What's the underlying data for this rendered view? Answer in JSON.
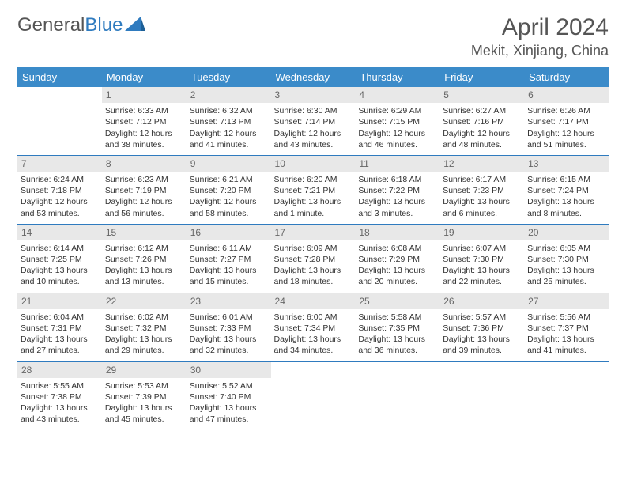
{
  "logo": {
    "part1": "General",
    "part2": "Blue"
  },
  "title": "April 2024",
  "location": "Mekit, Xinjiang, China",
  "colors": {
    "header_bg": "#3b8bc9",
    "header_fg": "#ffffff",
    "daynum_bg": "#e8e8e8",
    "daynum_fg": "#666666",
    "rule": "#2f7bbf",
    "text": "#333333"
  },
  "weekdays": [
    "Sunday",
    "Monday",
    "Tuesday",
    "Wednesday",
    "Thursday",
    "Friday",
    "Saturday"
  ],
  "weeks": [
    [
      {
        "day": "",
        "sunrise": "",
        "sunset": "",
        "daylight": ""
      },
      {
        "day": "1",
        "sunrise": "Sunrise: 6:33 AM",
        "sunset": "Sunset: 7:12 PM",
        "daylight": "Daylight: 12 hours and 38 minutes."
      },
      {
        "day": "2",
        "sunrise": "Sunrise: 6:32 AM",
        "sunset": "Sunset: 7:13 PM",
        "daylight": "Daylight: 12 hours and 41 minutes."
      },
      {
        "day": "3",
        "sunrise": "Sunrise: 6:30 AM",
        "sunset": "Sunset: 7:14 PM",
        "daylight": "Daylight: 12 hours and 43 minutes."
      },
      {
        "day": "4",
        "sunrise": "Sunrise: 6:29 AM",
        "sunset": "Sunset: 7:15 PM",
        "daylight": "Daylight: 12 hours and 46 minutes."
      },
      {
        "day": "5",
        "sunrise": "Sunrise: 6:27 AM",
        "sunset": "Sunset: 7:16 PM",
        "daylight": "Daylight: 12 hours and 48 minutes."
      },
      {
        "day": "6",
        "sunrise": "Sunrise: 6:26 AM",
        "sunset": "Sunset: 7:17 PM",
        "daylight": "Daylight: 12 hours and 51 minutes."
      }
    ],
    [
      {
        "day": "7",
        "sunrise": "Sunrise: 6:24 AM",
        "sunset": "Sunset: 7:18 PM",
        "daylight": "Daylight: 12 hours and 53 minutes."
      },
      {
        "day": "8",
        "sunrise": "Sunrise: 6:23 AM",
        "sunset": "Sunset: 7:19 PM",
        "daylight": "Daylight: 12 hours and 56 minutes."
      },
      {
        "day": "9",
        "sunrise": "Sunrise: 6:21 AM",
        "sunset": "Sunset: 7:20 PM",
        "daylight": "Daylight: 12 hours and 58 minutes."
      },
      {
        "day": "10",
        "sunrise": "Sunrise: 6:20 AM",
        "sunset": "Sunset: 7:21 PM",
        "daylight": "Daylight: 13 hours and 1 minute."
      },
      {
        "day": "11",
        "sunrise": "Sunrise: 6:18 AM",
        "sunset": "Sunset: 7:22 PM",
        "daylight": "Daylight: 13 hours and 3 minutes."
      },
      {
        "day": "12",
        "sunrise": "Sunrise: 6:17 AM",
        "sunset": "Sunset: 7:23 PM",
        "daylight": "Daylight: 13 hours and 6 minutes."
      },
      {
        "day": "13",
        "sunrise": "Sunrise: 6:15 AM",
        "sunset": "Sunset: 7:24 PM",
        "daylight": "Daylight: 13 hours and 8 minutes."
      }
    ],
    [
      {
        "day": "14",
        "sunrise": "Sunrise: 6:14 AM",
        "sunset": "Sunset: 7:25 PM",
        "daylight": "Daylight: 13 hours and 10 minutes."
      },
      {
        "day": "15",
        "sunrise": "Sunrise: 6:12 AM",
        "sunset": "Sunset: 7:26 PM",
        "daylight": "Daylight: 13 hours and 13 minutes."
      },
      {
        "day": "16",
        "sunrise": "Sunrise: 6:11 AM",
        "sunset": "Sunset: 7:27 PM",
        "daylight": "Daylight: 13 hours and 15 minutes."
      },
      {
        "day": "17",
        "sunrise": "Sunrise: 6:09 AM",
        "sunset": "Sunset: 7:28 PM",
        "daylight": "Daylight: 13 hours and 18 minutes."
      },
      {
        "day": "18",
        "sunrise": "Sunrise: 6:08 AM",
        "sunset": "Sunset: 7:29 PM",
        "daylight": "Daylight: 13 hours and 20 minutes."
      },
      {
        "day": "19",
        "sunrise": "Sunrise: 6:07 AM",
        "sunset": "Sunset: 7:30 PM",
        "daylight": "Daylight: 13 hours and 22 minutes."
      },
      {
        "day": "20",
        "sunrise": "Sunrise: 6:05 AM",
        "sunset": "Sunset: 7:30 PM",
        "daylight": "Daylight: 13 hours and 25 minutes."
      }
    ],
    [
      {
        "day": "21",
        "sunrise": "Sunrise: 6:04 AM",
        "sunset": "Sunset: 7:31 PM",
        "daylight": "Daylight: 13 hours and 27 minutes."
      },
      {
        "day": "22",
        "sunrise": "Sunrise: 6:02 AM",
        "sunset": "Sunset: 7:32 PM",
        "daylight": "Daylight: 13 hours and 29 minutes."
      },
      {
        "day": "23",
        "sunrise": "Sunrise: 6:01 AM",
        "sunset": "Sunset: 7:33 PM",
        "daylight": "Daylight: 13 hours and 32 minutes."
      },
      {
        "day": "24",
        "sunrise": "Sunrise: 6:00 AM",
        "sunset": "Sunset: 7:34 PM",
        "daylight": "Daylight: 13 hours and 34 minutes."
      },
      {
        "day": "25",
        "sunrise": "Sunrise: 5:58 AM",
        "sunset": "Sunset: 7:35 PM",
        "daylight": "Daylight: 13 hours and 36 minutes."
      },
      {
        "day": "26",
        "sunrise": "Sunrise: 5:57 AM",
        "sunset": "Sunset: 7:36 PM",
        "daylight": "Daylight: 13 hours and 39 minutes."
      },
      {
        "day": "27",
        "sunrise": "Sunrise: 5:56 AM",
        "sunset": "Sunset: 7:37 PM",
        "daylight": "Daylight: 13 hours and 41 minutes."
      }
    ],
    [
      {
        "day": "28",
        "sunrise": "Sunrise: 5:55 AM",
        "sunset": "Sunset: 7:38 PM",
        "daylight": "Daylight: 13 hours and 43 minutes."
      },
      {
        "day": "29",
        "sunrise": "Sunrise: 5:53 AM",
        "sunset": "Sunset: 7:39 PM",
        "daylight": "Daylight: 13 hours and 45 minutes."
      },
      {
        "day": "30",
        "sunrise": "Sunrise: 5:52 AM",
        "sunset": "Sunset: 7:40 PM",
        "daylight": "Daylight: 13 hours and 47 minutes."
      },
      {
        "day": "",
        "sunrise": "",
        "sunset": "",
        "daylight": ""
      },
      {
        "day": "",
        "sunrise": "",
        "sunset": "",
        "daylight": ""
      },
      {
        "day": "",
        "sunrise": "",
        "sunset": "",
        "daylight": ""
      },
      {
        "day": "",
        "sunrise": "",
        "sunset": "",
        "daylight": ""
      }
    ]
  ]
}
